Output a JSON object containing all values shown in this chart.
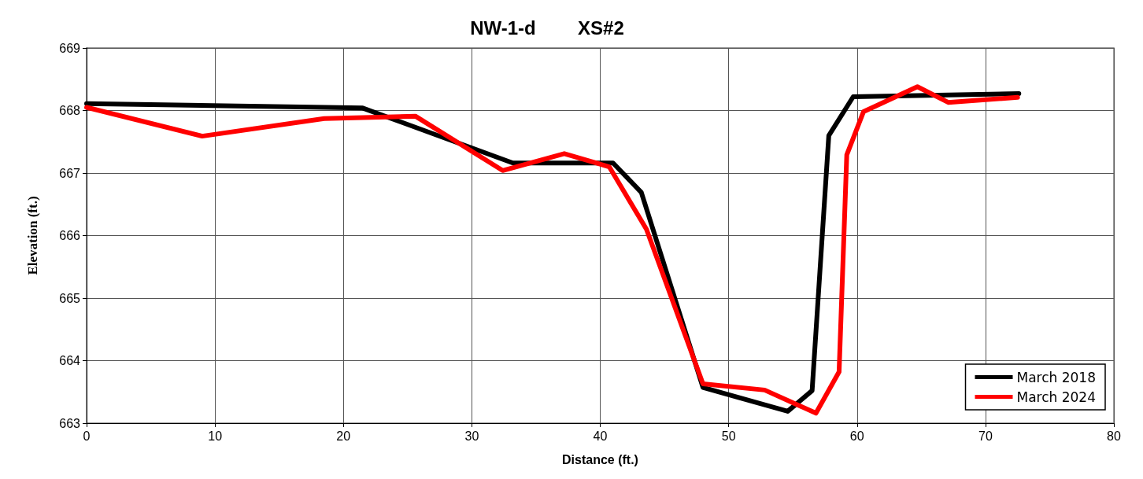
{
  "chart_data": {
    "type": "line",
    "title": "NW-1-d        XS#2",
    "xlabel": "Distance (ft.)",
    "ylabel": "Elevation (ft.)",
    "xlim": [
      0,
      80
    ],
    "xticks": [
      0,
      10,
      20,
      30,
      40,
      50,
      60,
      70,
      80
    ],
    "ylim": [
      663,
      669
    ],
    "yticks": [
      663,
      664,
      665,
      666,
      667,
      668,
      669
    ],
    "grid": true,
    "legend": "bottom right",
    "marker": "none",
    "line_style": "solid",
    "series": [
      {
        "name": "March 2018",
        "color": "#000000",
        "x": [
          0,
          21.5,
          33.2,
          41.0,
          43.2,
          48.0,
          54.6,
          56.5,
          57.8,
          59.7,
          72.6
        ],
        "values": [
          668.11,
          668.04,
          667.16,
          667.16,
          666.69,
          663.57,
          663.19,
          663.52,
          667.6,
          668.22,
          668.27
        ]
      },
      {
        "name": "March 2024",
        "color": "#ff0000",
        "x": [
          0,
          9.0,
          18.5,
          25.6,
          32.4,
          37.2,
          40.7,
          43.6,
          48.0,
          52.8,
          56.8,
          58.6,
          59.2,
          60.5,
          64.7,
          67.1,
          72.5
        ],
        "values": [
          668.05,
          667.59,
          667.87,
          667.91,
          667.04,
          667.31,
          667.1,
          666.1,
          663.63,
          663.53,
          663.16,
          663.82,
          667.29,
          667.98,
          668.38,
          668.13,
          668.21
        ]
      }
    ]
  }
}
